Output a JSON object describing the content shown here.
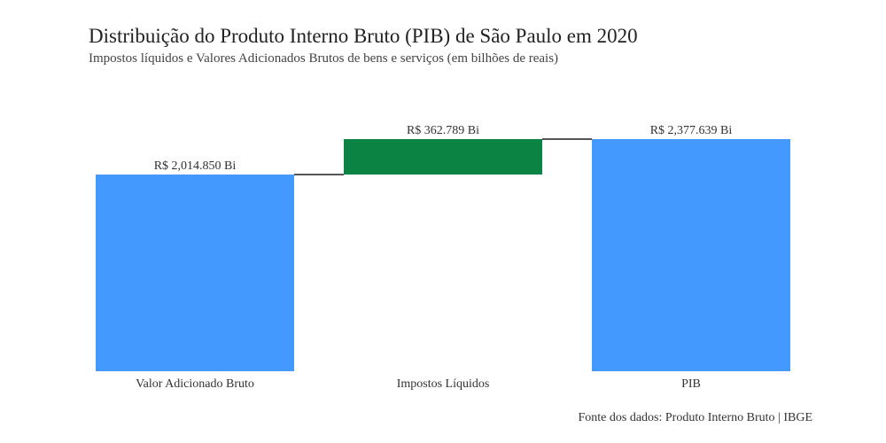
{
  "chart_data": {
    "type": "bar",
    "subtype": "waterfall",
    "title": "Distribuição do Produto Interno Bruto (PIB) de São Paulo em 2020",
    "subtitle": "Impostos líquidos e Valores Adicionados Brutos de bens e serviços (em bilhões de reais)",
    "caption": "Fonte dos dados: Produto Interno Bruto | IBGE",
    "categories": [
      "Valor Adicionado Bruto",
      "Impostos Líquidos",
      "PIB"
    ],
    "bars": [
      {
        "category": "Valor Adicionado Bruto",
        "start": 0,
        "end": 2014.85,
        "label": "R$ 2,014.850 Bi",
        "color": "#4499ff"
      },
      {
        "category": "Impostos Líquidos",
        "start": 2014.85,
        "end": 2377.639,
        "label": "R$ 362.789 Bi",
        "color": "#0b8343"
      },
      {
        "category": "PIB",
        "start": 0,
        "end": 2377.639,
        "label": "R$ 2,377.639 Bi",
        "color": "#4499ff"
      }
    ],
    "connector_color": "#555555",
    "ylim": [
      0,
      2377.639
    ],
    "xlabel": "",
    "ylabel": "",
    "grid": false,
    "legend": "none"
  }
}
